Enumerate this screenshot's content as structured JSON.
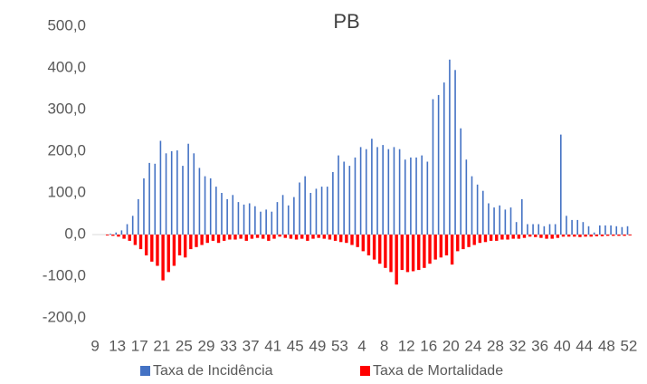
{
  "chart_data": {
    "type": "bar",
    "title": "PB",
    "categories": [
      "9",
      null,
      null,
      null,
      "13",
      null,
      null,
      null,
      "17",
      null,
      null,
      null,
      "21",
      null,
      null,
      null,
      "25",
      null,
      null,
      null,
      "29",
      null,
      null,
      null,
      "33",
      null,
      null,
      null,
      "37",
      null,
      null,
      null,
      "41",
      null,
      null,
      null,
      "45",
      null,
      null,
      null,
      "49",
      null,
      null,
      null,
      "53",
      null,
      null,
      null,
      "4",
      null,
      null,
      null,
      "8",
      null,
      null,
      null,
      "12",
      null,
      null,
      null,
      "16",
      null,
      null,
      null,
      "20",
      null,
      null,
      null,
      "24",
      null,
      null,
      null,
      "28",
      null,
      null,
      null,
      "32",
      null,
      null,
      null,
      "36",
      null,
      null,
      null,
      "40",
      null,
      null,
      null,
      "44",
      null,
      null,
      null,
      "48",
      null,
      null,
      null,
      "52"
    ],
    "series": [
      {
        "name": "Taxa de Incidência",
        "color": "#4472c4",
        "values": [
          0,
          0,
          0,
          2,
          5,
          10,
          25,
          45,
          85,
          135,
          172,
          170,
          225,
          195,
          200,
          202,
          165,
          218,
          195,
          160,
          140,
          135,
          115,
          100,
          85,
          95,
          78,
          72,
          75,
          68,
          55,
          60,
          55,
          78,
          95,
          70,
          90,
          125,
          140,
          100,
          110,
          115,
          115,
          150,
          190,
          175,
          165,
          185,
          210,
          205,
          230,
          210,
          215,
          205,
          210,
          205,
          180,
          185,
          185,
          190,
          175,
          325,
          335,
          365,
          420,
          395,
          255,
          180,
          140,
          120,
          105,
          75,
          65,
          70,
          60,
          65,
          30,
          85,
          25,
          25,
          25,
          20,
          25,
          25,
          240,
          45,
          35,
          35,
          30,
          20,
          5,
          22,
          22,
          22,
          20,
          18,
          20
        ]
      },
      {
        "name": "Taxa de Mortalidade",
        "color": "#ff0000",
        "values": [
          0,
          0,
          -2,
          -3,
          -5,
          -10,
          -15,
          -25,
          -35,
          -50,
          -65,
          -75,
          -110,
          -90,
          -75,
          -50,
          -55,
          -35,
          -30,
          -25,
          -20,
          -15,
          -20,
          -15,
          -12,
          -12,
          -10,
          -15,
          -10,
          -8,
          -10,
          -15,
          -10,
          -5,
          -8,
          -10,
          -12,
          -10,
          -15,
          -10,
          -8,
          -10,
          -12,
          -15,
          -18,
          -20,
          -25,
          -30,
          -40,
          -50,
          -60,
          -70,
          -80,
          -90,
          -120,
          -85,
          -90,
          -88,
          -85,
          -80,
          -70,
          -60,
          -55,
          -50,
          -72,
          -40,
          -35,
          -30,
          -25,
          -20,
          -18,
          -15,
          -15,
          -12,
          -12,
          -10,
          -10,
          -8,
          -5,
          -6,
          -8,
          -10,
          -10,
          -8,
          -5,
          -5,
          -5,
          -6,
          -5,
          -5,
          -4,
          -4,
          -3,
          -3,
          -3,
          -3,
          -2
        ]
      }
    ],
    "ylim": [
      -200,
      500
    ],
    "yticks": [
      {
        "value": -200,
        "label": "-200,0"
      },
      {
        "value": -100,
        "label": "-100,0"
      },
      {
        "value": 0,
        "label": "0,0"
      },
      {
        "value": 100,
        "label": "100,0"
      },
      {
        "value": 200,
        "label": "200,0"
      },
      {
        "value": 300,
        "label": "300,0"
      },
      {
        "value": 400,
        "label": "400,0"
      },
      {
        "value": 500,
        "label": "500,0"
      }
    ],
    "legend": "bottom"
  }
}
